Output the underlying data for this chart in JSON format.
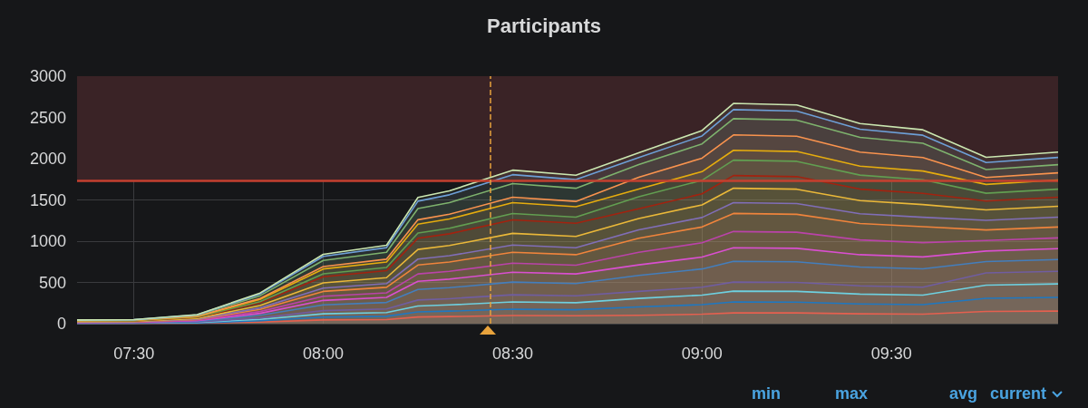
{
  "chart_data": {
    "type": "area",
    "title": "Participants",
    "stacked": true,
    "grid": true,
    "x": [
      7.35,
      7.5,
      7.667,
      7.833,
      8.0,
      8.167,
      8.25,
      8.333,
      8.5,
      8.667,
      8.833,
      9.0,
      9.083,
      9.25,
      9.417,
      9.583,
      9.75,
      9.94
    ],
    "xlim": [
      7.35,
      9.94
    ],
    "xticks": [
      {
        "value": 7.5,
        "label": "07:30"
      },
      {
        "value": 8.0,
        "label": "08:00"
      },
      {
        "value": 8.5,
        "label": "08:30"
      },
      {
        "value": 9.0,
        "label": "09:00"
      },
      {
        "value": 9.5,
        "label": "09:30"
      }
    ],
    "ylim": [
      0,
      3000
    ],
    "yticks": [
      0,
      500,
      1000,
      1500,
      2000,
      2500,
      3000
    ],
    "series": [
      {
        "color": "#e5604f",
        "values": [
          2,
          3,
          6,
          20,
          45,
          50,
          81,
          86,
          99,
          96,
          102,
          115,
          131,
          130,
          119,
          115,
          148,
          153
        ]
      },
      {
        "color": "#1f78c1",
        "values": [
          2,
          2,
          4,
          15,
          34,
          39,
          62,
          66,
          76,
          73,
          102,
          116,
          132,
          131,
          120,
          116,
          160,
          165
        ]
      },
      {
        "color": "#6ed0e0",
        "values": [
          2,
          2,
          5,
          18,
          40,
          45,
          72,
          76,
          88,
          85,
          102,
          115,
          131,
          130,
          119,
          115,
          159,
          164
        ]
      },
      {
        "color": "#705da0",
        "values": [
          2,
          2,
          5,
          17,
          39,
          44,
          72,
          75,
          87,
          84,
          85,
          96,
          110,
          109,
          100,
          97,
          148,
          153
        ]
      },
      {
        "color": "#447ebc",
        "values": [
          4,
          4,
          9,
          31,
          70,
          79,
          127,
          133,
          154,
          149,
          195,
          221,
          252,
          250,
          229,
          222,
          138,
          142
        ]
      },
      {
        "color": "#d94fd0",
        "values": [
          3,
          3,
          7,
          24,
          54,
          61,
          99,
          104,
          120,
          116,
          127,
          144,
          164,
          163,
          149,
          144,
          128,
          132
        ]
      },
      {
        "color": "#ba43a9",
        "values": [
          3,
          3,
          7,
          22,
          50,
          56,
          90,
          95,
          110,
          106,
          153,
          173,
          197,
          196,
          179,
          173,
          127,
          131
        ]
      },
      {
        "color": "#ef843c",
        "values": [
          3,
          4,
          8,
          26,
          59,
          67,
          108,
          113,
          131,
          127,
          170,
          192,
          219,
          217,
          199,
          193,
          128,
          132
        ]
      },
      {
        "color": "#806eb7",
        "values": [
          2,
          2,
          5,
          18,
          40,
          45,
          72,
          76,
          88,
          85,
          102,
          115,
          131,
          130,
          119,
          115,
          116,
          120
        ]
      },
      {
        "color": "#eab839",
        "values": [
          3,
          4,
          8,
          28,
          64,
          72,
          117,
          123,
          142,
          137,
          136,
          153,
          175,
          174,
          159,
          154,
          127,
          131
        ]
      },
      {
        "color": "#a3220f",
        "values": [
          4,
          4,
          10,
          33,
          74,
          84,
          135,
          142,
          164,
          159,
          119,
          134,
          153,
          152,
          139,
          135,
          107,
          110
        ]
      },
      {
        "color": "#629e51",
        "values": [
          2,
          2,
          5,
          15,
          35,
          39,
          63,
          67,
          77,
          74,
          145,
          164,
          187,
          186,
          170,
          165,
          95,
          98
        ]
      },
      {
        "color": "#e5ac0e",
        "values": [
          3,
          4,
          8,
          26,
          59,
          67,
          108,
          113,
          131,
          127,
          93,
          105,
          120,
          119,
          109,
          106,
          107,
          110
        ]
      },
      {
        "color": "#f9934e",
        "values": [
          2,
          2,
          4,
          13,
          30,
          34,
          54,
          57,
          66,
          64,
          144,
          163,
          186,
          185,
          169,
          164,
          84,
          87
        ]
      },
      {
        "color": "#7eb26d",
        "values": [
          4,
          4,
          10,
          33,
          74,
          84,
          135,
          142,
          164,
          159,
          153,
          173,
          197,
          196,
          179,
          173,
          96,
          99
        ]
      },
      {
        "color": "#6d9fd6",
        "values": [
          3,
          3,
          6,
          22,
          49,
          56,
          90,
          94,
          109,
          105,
          85,
          96,
          110,
          109,
          100,
          97,
          85,
          88
        ]
      },
      {
        "color": "#cae6b0",
        "values": [
          1,
          2,
          3,
          11,
          25,
          28,
          45,
          48,
          55,
          53,
          58,
          66,
          75,
          74,
          68,
          66,
          63,
          65
        ]
      }
    ],
    "ref_lines": [
      {
        "axis": "y",
        "value": 1730,
        "color": "#c4402f",
        "line_style": "solid"
      },
      {
        "axis": "x",
        "value": 8.435,
        "color": "#e8a33c",
        "line_style": "dashed"
      }
    ],
    "bands": [
      {
        "axis": "y",
        "from": 1730,
        "to": 3000,
        "color": "#3a2326"
      }
    ],
    "annotations": [
      "min",
      "max",
      "avg",
      "current"
    ]
  }
}
